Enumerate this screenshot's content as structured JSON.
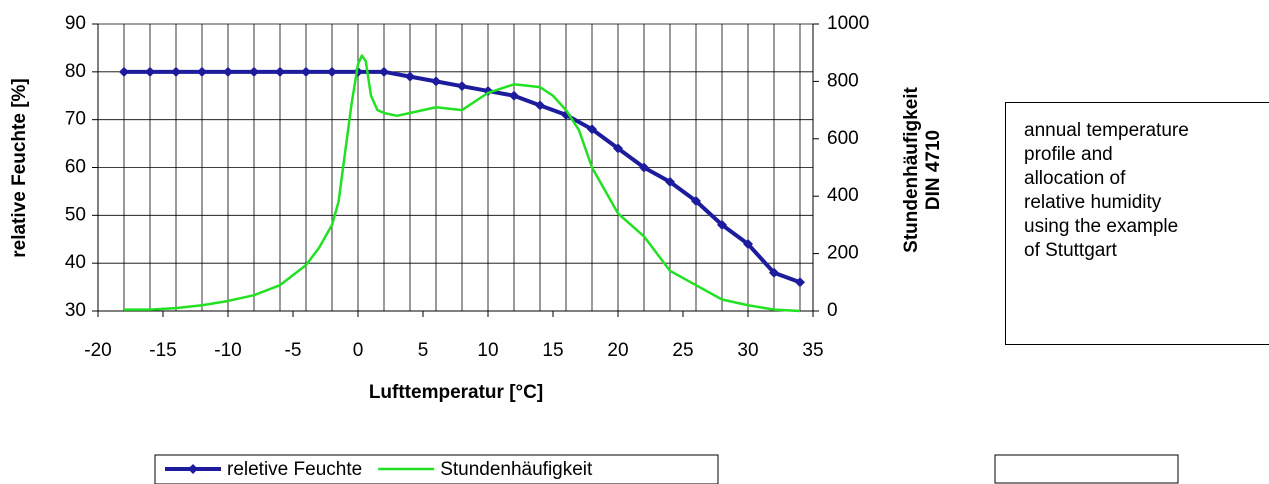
{
  "chart_data": {
    "type": "line",
    "x_label": "Lufttemperatur [°C]",
    "y_label": "relative Feuchte [%]",
    "y2_label": [
      "Stundenhäufigkeit",
      "DIN 4710"
    ],
    "annotation": "annual temperature profile and allocation of relative humidity using the example of Stuttgart",
    "xlim": [
      -20,
      35
    ],
    "xticks": [
      -20,
      -15,
      -10,
      -5,
      0,
      5,
      10,
      15,
      20,
      25,
      30,
      35
    ],
    "ylim": [
      30,
      90
    ],
    "yticks": [
      30,
      40,
      50,
      60,
      70,
      80,
      90
    ],
    "y2lim": [
      0,
      1000
    ],
    "y2ticks": [
      0,
      200,
      400,
      600,
      800,
      1000
    ],
    "grid": true,
    "legend": "bottom",
    "series": [
      {
        "name": "reletive Feuchte",
        "color": "#1c1c9c",
        "marker": "diamond",
        "x": [
          -18,
          -16,
          -14,
          -12,
          -10,
          -8,
          -6,
          -4,
          -2,
          0,
          2,
          4,
          6,
          8,
          10,
          12,
          14,
          16,
          18,
          20,
          22,
          24,
          26,
          28,
          30,
          32,
          34
        ],
        "values": [
          80,
          80,
          80,
          80,
          80,
          80,
          80,
          80,
          80,
          80,
          80,
          79,
          78,
          77,
          76,
          75,
          73,
          71,
          68,
          64,
          60,
          57,
          53,
          48,
          44,
          38,
          36
        ]
      },
      {
        "name": "Stundenhäufigkeit",
        "color": "#22e022",
        "axis": "y2",
        "x": [
          -18,
          -16,
          -14,
          -12,
          -10,
          -8,
          -6,
          -4,
          -3,
          -2,
          -1.5,
          -1,
          -0.5,
          0,
          0.3,
          0.6,
          1,
          1.5,
          2,
          3,
          4,
          6,
          8,
          10,
          12,
          14,
          15,
          16,
          17,
          18,
          20,
          22,
          24,
          26,
          28,
          30,
          32,
          34
        ],
        "values": [
          5,
          5,
          10,
          20,
          35,
          55,
          90,
          160,
          220,
          300,
          380,
          550,
          720,
          860,
          890,
          870,
          750,
          700,
          690,
          680,
          690,
          710,
          700,
          760,
          790,
          780,
          750,
          700,
          630,
          500,
          340,
          260,
          140,
          90,
          40,
          20,
          5,
          0
        ]
      }
    ]
  }
}
